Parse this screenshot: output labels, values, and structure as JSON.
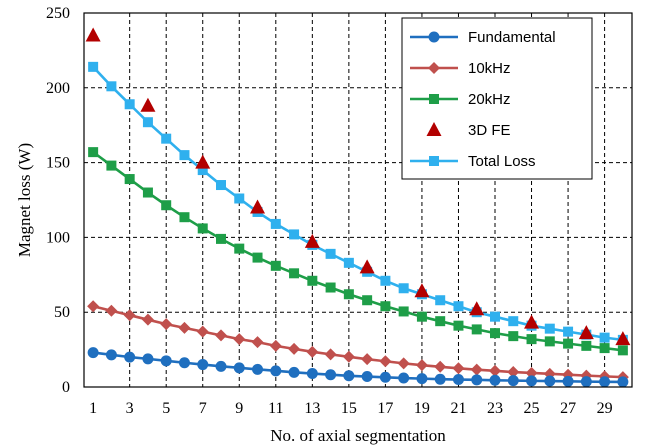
{
  "chart_data": {
    "type": "line",
    "title": "",
    "xlabel": "No. of axial segmentation",
    "ylabel": "Magnet loss (W)",
    "xlim": [
      1,
      30
    ],
    "ylim": [
      0,
      250
    ],
    "xticks": [
      "1",
      "3",
      "5",
      "7",
      "9",
      "11",
      "13",
      "15",
      "17",
      "19",
      "21",
      "23",
      "25",
      "27",
      "29"
    ],
    "yticks": [
      "0",
      "50",
      "100",
      "150",
      "200",
      "250"
    ],
    "grid": true,
    "legend_position": "top-right",
    "x": [
      1,
      2,
      3,
      4,
      5,
      6,
      7,
      8,
      9,
      10,
      11,
      12,
      13,
      14,
      15,
      16,
      17,
      18,
      19,
      20,
      21,
      22,
      23,
      24,
      25,
      26,
      27,
      28,
      29,
      30
    ],
    "series": [
      {
        "name": "Fundamental",
        "color": "#1F6FBF",
        "marker": "circle",
        "values": [
          23,
          21.5,
          20,
          18.8,
          17.5,
          16.2,
          15,
          13.8,
          12.8,
          11.8,
          10.8,
          9.8,
          9,
          8.2,
          7.5,
          7,
          6.5,
          6,
          5.6,
          5.2,
          5,
          4.8,
          4.5,
          4.3,
          4.1,
          4,
          3.8,
          3.6,
          3.5,
          3.4
        ]
      },
      {
        "name": "10kHz",
        "color": "#C0504D",
        "marker": "diamond",
        "values": [
          54,
          51,
          48,
          45,
          42,
          39.5,
          37,
          34.5,
          32,
          30,
          27.5,
          25.5,
          23.5,
          21.8,
          20.2,
          18.6,
          17.2,
          15.8,
          14.6,
          13.5,
          12.5,
          11.6,
          10.8,
          10,
          9.4,
          8.8,
          8.2,
          7.6,
          7.1,
          6.6
        ]
      },
      {
        "name": "20kHz",
        "color": "#1E9E48",
        "marker": "square",
        "values": [
          157,
          148,
          139,
          130,
          121.5,
          113.5,
          106,
          99,
          92.5,
          86.5,
          81,
          76,
          71,
          66.5,
          62,
          58,
          54,
          50.5,
          47,
          44,
          41,
          38.5,
          36,
          34,
          32,
          30.5,
          29,
          27.5,
          26,
          24.5
        ]
      },
      {
        "name": "3D FE",
        "color": "#B30000",
        "marker": "triangle",
        "line": false,
        "x": [
          1,
          4,
          7,
          10,
          13,
          16,
          19,
          22,
          25,
          28,
          30
        ],
        "values": [
          235,
          188,
          150,
          120,
          97,
          80,
          64,
          52,
          43,
          36,
          32
        ]
      },
      {
        "name": "Total Loss",
        "color": "#2FB0EE",
        "marker": "square",
        "values": [
          214,
          201,
          189,
          177,
          166,
          155,
          145,
          135,
          126,
          117,
          109,
          102,
          95,
          89,
          83,
          77,
          71,
          66,
          62,
          58,
          54,
          50,
          47,
          44,
          41,
          39,
          37,
          35,
          33,
          31.5
        ]
      }
    ]
  }
}
